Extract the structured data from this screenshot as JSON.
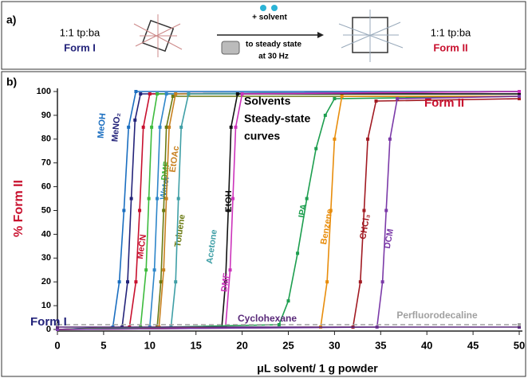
{
  "scheme": {
    "panel": "a)",
    "left_ratio": "1:1 tp:ba",
    "left_form": "Form I",
    "reagent": "+ solvent",
    "condition": [
      "to steady state",
      "at 30 Hz"
    ],
    "right_ratio": "1:1 tp:ba",
    "right_form": "Form II"
  },
  "chart_data": {
    "type": "line",
    "panel": "b)",
    "y_label": "% Form II",
    "x_label": "μL solvent/ 1 g powder",
    "annotations": {
      "note": [
        "Solvents",
        "Steady-state",
        "curves"
      ],
      "form_low": "Form I",
      "form_high": "Form II"
    },
    "xlim": [
      0,
      50
    ],
    "ylim": [
      0,
      100
    ],
    "xticks": [
      0,
      5,
      10,
      15,
      20,
      25,
      30,
      35,
      40,
      45,
      50
    ],
    "yticks": [
      0,
      10,
      20,
      30,
      40,
      50,
      60,
      70,
      80,
      90,
      100
    ],
    "grid": false,
    "series": [
      {
        "name": "MeOH",
        "color": "#1a6ec0",
        "x": [
          0,
          6,
          6.7,
          7.2,
          7.7,
          8.5,
          50
        ],
        "values": [
          0,
          1,
          20,
          50,
          85,
          100,
          100
        ]
      },
      {
        "name": "MeNO₂",
        "color": "#23237a",
        "x": [
          0,
          7,
          7.6,
          8,
          8.4,
          9,
          50
        ],
        "values": [
          0,
          1,
          20,
          55,
          88,
          99,
          100
        ]
      },
      {
        "name": "MeCN",
        "color": "#c8102e",
        "x": [
          0,
          7.8,
          8.5,
          8.9,
          9.3,
          10,
          50
        ],
        "values": [
          0,
          1,
          20,
          50,
          85,
          99,
          100
        ]
      },
      {
        "name": "DMF",
        "color": "#3dbb3d",
        "x": [
          0,
          9,
          9.6,
          9.9,
          10.2,
          10.8,
          50
        ],
        "values": [
          0,
          1,
          25,
          55,
          85,
          99,
          100
        ]
      },
      {
        "name": "Water",
        "color": "#2e86c9",
        "x": [
          0,
          10,
          10.5,
          10.8,
          11.1,
          11.8,
          50
        ],
        "values": [
          0,
          1,
          25,
          55,
          85,
          99,
          100
        ]
      },
      {
        "name": "Toluene",
        "color": "#6a7a12",
        "x": [
          0,
          10.8,
          11.2,
          11.5,
          11.8,
          12.5,
          50
        ],
        "values": [
          0,
          1,
          20,
          50,
          85,
          98,
          98
        ]
      },
      {
        "name": "EtOAc",
        "color": "#c7801f",
        "x": [
          0,
          11,
          11.5,
          11.8,
          12.1,
          12.8,
          50
        ],
        "values": [
          0,
          1,
          25,
          55,
          85,
          99,
          99
        ]
      },
      {
        "name": "Acetone",
        "color": "#3f9fa6",
        "x": [
          0,
          12.3,
          12.8,
          13.1,
          13.4,
          14.2,
          50
        ],
        "values": [
          0,
          1,
          20,
          55,
          85,
          99,
          99
        ]
      },
      {
        "name": "EtOH",
        "color": "#111111",
        "x": [
          0,
          17.8,
          18.2,
          18.5,
          18.8,
          19.5,
          50
        ],
        "values": [
          0,
          1,
          20,
          50,
          85,
          99,
          99
        ]
      },
      {
        "name": "DMF",
        "color": "#cc33bb",
        "x": [
          0,
          18.2,
          18.7,
          19,
          19.3,
          20,
          50
        ],
        "values": [
          0,
          1,
          25,
          55,
          85,
          99,
          100
        ]
      },
      {
        "name": "IPA",
        "color": "#1d9e4f",
        "x": [
          0,
          24,
          25,
          26,
          27,
          28,
          29,
          30,
          50
        ],
        "values": [
          0,
          2,
          12,
          32,
          55,
          76,
          90,
          97,
          98
        ]
      },
      {
        "name": "Benzene",
        "color": "#e88d0c",
        "x": [
          0,
          28.5,
          29.2,
          29.6,
          30,
          30.8,
          50
        ],
        "values": [
          0,
          1,
          20,
          50,
          80,
          98,
          98
        ]
      },
      {
        "name": "CHCl₃",
        "color": "#a11a22",
        "x": [
          0,
          32,
          32.8,
          33.2,
          33.6,
          34.5,
          50
        ],
        "values": [
          0,
          1,
          20,
          50,
          80,
          96,
          97
        ]
      },
      {
        "name": "DCM",
        "color": "#7b3aa8",
        "x": [
          0,
          34.6,
          35.2,
          35.6,
          36,
          36.8,
          50
        ],
        "values": [
          0,
          1,
          20,
          50,
          80,
          97,
          98
        ]
      },
      {
        "name": "Cyclohexane",
        "color": "#5a2a7a",
        "x": [
          0,
          50
        ],
        "values": [
          1,
          1
        ]
      },
      {
        "name": "Perfluorodecaline",
        "color": "#a0a0a0",
        "line_style": "dashed",
        "x": [
          0,
          50
        ],
        "values": [
          2,
          2
        ]
      }
    ]
  }
}
